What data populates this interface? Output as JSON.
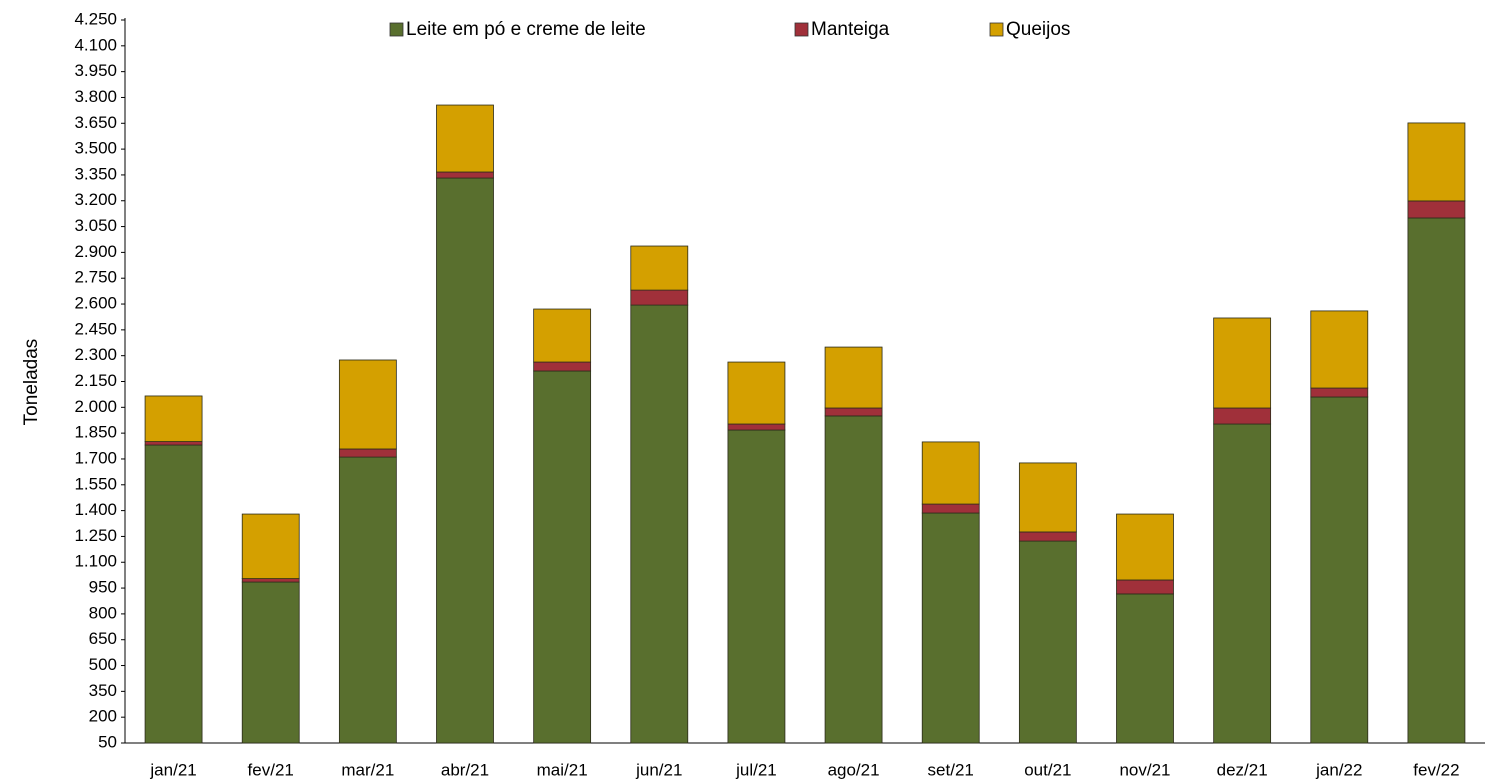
{
  "chart_data": {
    "type": "stacked_bar",
    "y_label": "Toneladas",
    "categories": [
      "jan/21",
      "fev/21",
      "mar/21",
      "abr/21",
      "mai/21",
      "jun/21",
      "jul/21",
      "ago/21",
      "set/21",
      "out/21",
      "nov/21",
      "dez/21",
      "jan/22",
      "fev/22"
    ],
    "series": [
      {
        "name": "Leite em pó e creme de leite",
        "color": "#596f2e",
        "values": [
          1781,
          985,
          1711,
          3332,
          2211,
          2594,
          1868,
          1950,
          1386,
          1223,
          916,
          1903,
          2060,
          3100
        ]
      },
      {
        "name": "Manteiga",
        "color": "#a0303a",
        "values": [
          20,
          20,
          47,
          35,
          52,
          87,
          35,
          46,
          52,
          53,
          81,
          93,
          52,
          99
        ]
      },
      {
        "name": "Queijos",
        "color": "#d4a000",
        "values": [
          265,
          375,
          517,
          389,
          308,
          256,
          360,
          354,
          361,
          401,
          383,
          523,
          448,
          453
        ]
      }
    ],
    "ylim": [
      50,
      4250
    ],
    "yticks": [
      50,
      200,
      350,
      500,
      650,
      800,
      950,
      {
        "value": 1100,
        "label": "1.100"
      },
      {
        "value": 1250,
        "label": "1.250"
      },
      {
        "value": 1400,
        "label": "1.400"
      },
      {
        "value": 1550,
        "label": "1.550"
      },
      {
        "value": 1700,
        "label": "1.700"
      },
      {
        "value": 1850,
        "label": "1.850"
      },
      {
        "value": 2000,
        "label": "2.000"
      },
      {
        "value": 2150,
        "label": "2.150"
      },
      {
        "value": 2300,
        "label": "2.300"
      },
      {
        "value": 2450,
        "label": "2.450"
      },
      {
        "value": 2600,
        "label": "2.600"
      },
      {
        "value": 2750,
        "label": "2.750"
      },
      {
        "value": 2900,
        "label": "2.900"
      },
      {
        "value": 3050,
        "label": "3.050"
      },
      {
        "value": 3200,
        "label": "3.200"
      },
      {
        "value": 3350,
        "label": "3.350"
      },
      {
        "value": 3500,
        "label": "3.500"
      },
      {
        "value": 3650,
        "label": "3.650"
      },
      {
        "value": 3800,
        "label": "3.800"
      },
      {
        "value": 3950,
        "label": "3.950"
      },
      {
        "value": 4100,
        "label": "4.100"
      },
      {
        "value": 4250,
        "label": "4.250"
      }
    ],
    "grid": false,
    "legend": "top"
  }
}
